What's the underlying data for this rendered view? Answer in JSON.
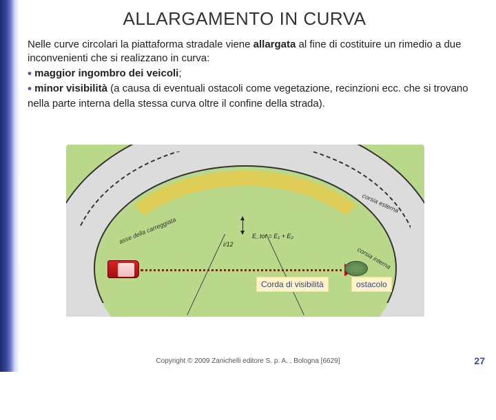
{
  "title": "ALLARGAMENTO IN CURVA",
  "para": {
    "intro_a": "Nelle curve circolari la piattaforma stradale viene ",
    "intro_bold": "allargata",
    "intro_b": " al fine di costituire un rimedio a due inconvenienti che si realizzano in curva:",
    "bullet1_bold": "maggior ingombro dei veicoli",
    "bullet1_tail": ";",
    "bullet2_bold": "minor visibilità",
    "bullet2_tail": " (a causa di eventuali ostacoli come vegetazione, recinzioni ecc. che si trovano nella parte interna  della stessa curva oltre il confine della strada)."
  },
  "diagram": {
    "asse": "asse della carreggiata",
    "corsia_ext": "corsia esterna",
    "corsia_int": "corsia interna",
    "i12": "i/12",
    "etot": "E_tot = E₁ + E₂",
    "corda": "Corda di visibilità",
    "ostacolo": "ostacolo",
    "colors": {
      "grass": "#b9d88a",
      "road": "#dcdcdc",
      "band": "#f6c846",
      "car": "#e02020",
      "chord": "#cc0000",
      "label_bg": "#fff3c8"
    }
  },
  "copyright": "Copyright © 2009 Zanichelli editore S. p. A. , Bologna [6629]",
  "pagenum": "27"
}
